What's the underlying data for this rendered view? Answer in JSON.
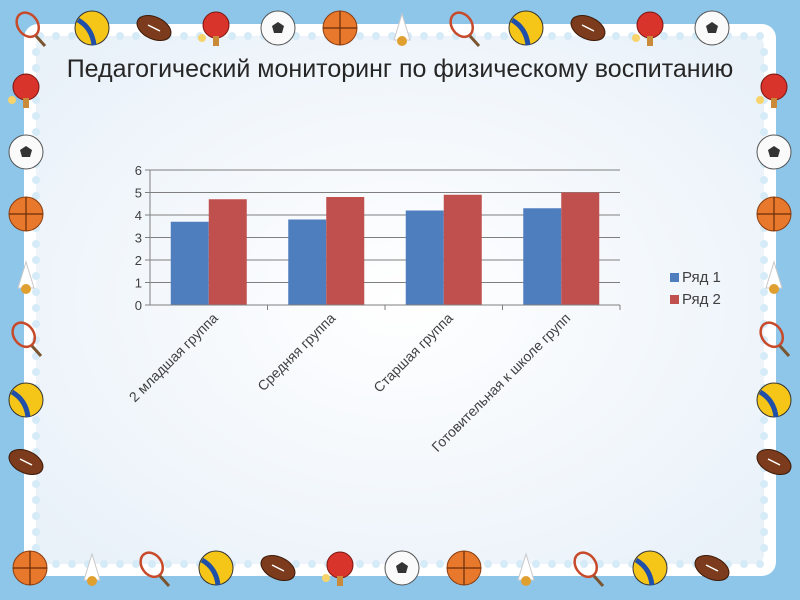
{
  "slide": {
    "title": "Педагогический мониторинг по физическому воспитанию",
    "frame_decoration": [
      "tennis-racket-icon",
      "volleyball-icon",
      "american-football-icon",
      "ping-pong-icon",
      "soccer-ball-icon",
      "basketball-icon",
      "shuttlecock-icon"
    ]
  },
  "colors": {
    "series1": "#4f7ebf",
    "series2": "#c0504d",
    "border_blue": "#8ec6ea",
    "panel": "#f4f7fb",
    "lace": "#ffffff"
  },
  "chart_data": {
    "type": "bar",
    "categories": [
      "2 младшая группа",
      "Средняя группа",
      "Старшая группа",
      "Готовительная к школе групп"
    ],
    "series": [
      {
        "name": "Ряд 1",
        "values": [
          3.7,
          3.8,
          4.2,
          4.3
        ]
      },
      {
        "name": "Ряд 2",
        "values": [
          4.7,
          4.8,
          4.9,
          5.0
        ]
      }
    ],
    "ylim": [
      0,
      6
    ],
    "yticks": [
      "0",
      "1",
      "2",
      "3",
      "4",
      "5",
      "6"
    ],
    "grid": true,
    "legend_position": "right"
  }
}
